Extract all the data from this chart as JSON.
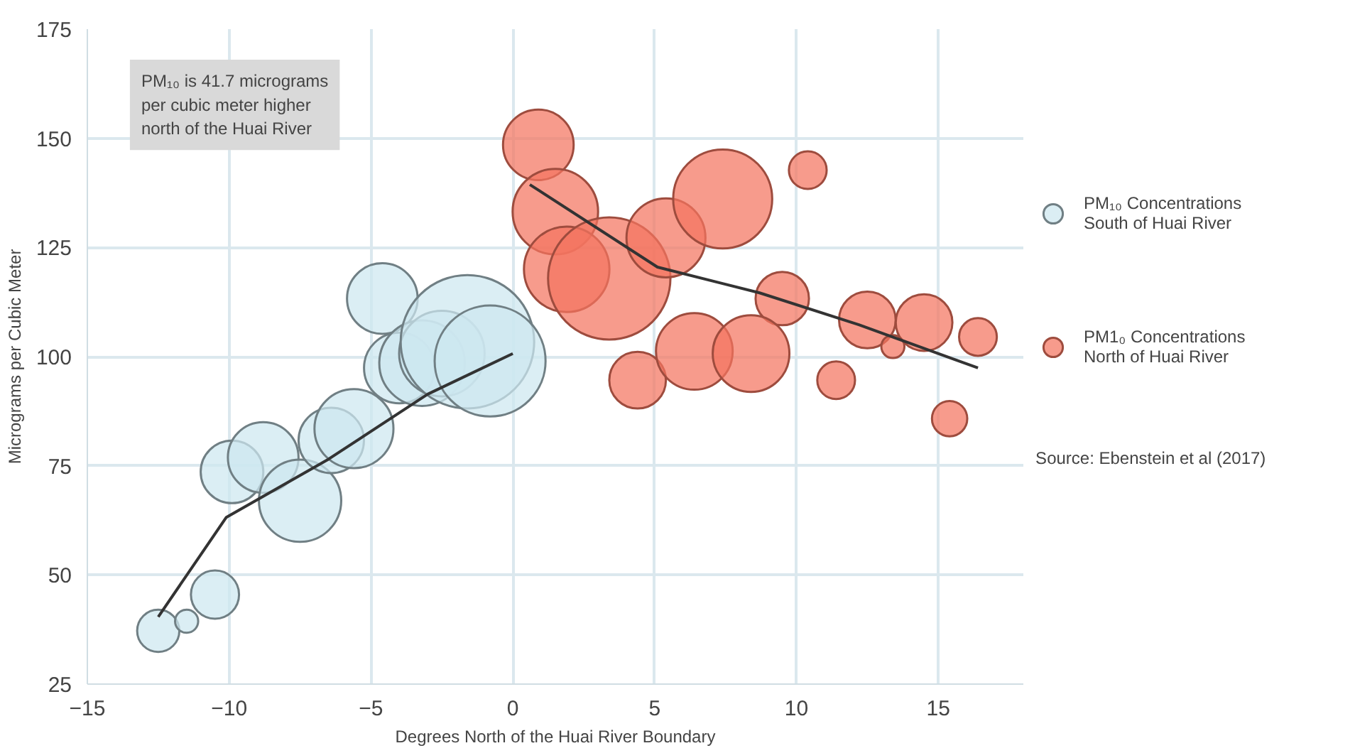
{
  "chart_data": {
    "type": "bubble",
    "xlabel": "Degrees North of the Huai River Boundary",
    "ylabel": "Micrograms per Cubic Meter",
    "xlim": [
      -15,
      18
    ],
    "xticks": [
      -15,
      -10,
      -5,
      0,
      5,
      10,
      15
    ],
    "ylim": [
      25,
      175
    ],
    "yticks": [
      25,
      50,
      75,
      100,
      125,
      150,
      175
    ],
    "grid": true,
    "legend": "right",
    "marker": "circle",
    "annotations": [
      "PM₁₀ is 41.7 micrograms per cubic meter higher north of the Huai River",
      "Source: Ebenstein et al (2017)"
    ],
    "series": [
      {
        "name": "PM₁₀ Concentrations South of Huai River",
        "color": "#cde8f0",
        "x": [
          -12.5,
          -11.5,
          -10.5,
          -9.9,
          -8.8,
          -7.5,
          -6.4,
          -5.6,
          -4.6,
          -4.0,
          -3.2,
          -2.5,
          -1.6,
          -0.8
        ],
        "values": [
          37.2,
          39.4,
          45.5,
          73.6,
          76.9,
          67,
          80.8,
          83.5,
          113.3,
          97.4,
          98.5,
          100.7,
          103.4,
          99
        ],
        "sizes": [
          0.1,
          0.03,
          0.13,
          0.22,
          0.28,
          0.38,
          0.24,
          0.35,
          0.28,
          0.28,
          0.41,
          0.41,
          1,
          0.69
        ]
      },
      {
        "name": "PM1₀ Concentrations North of Huai River",
        "color": "#f47560",
        "x": [
          0.9,
          1.5,
          1.9,
          3.4,
          5.4,
          7.4,
          10.4,
          9.5,
          4.4,
          6.4,
          8.4,
          11.4,
          12.5,
          13.4,
          14.5,
          16.4,
          15.4
        ],
        "values": [
          148.5,
          133.2,
          120,
          117.9,
          127.2,
          136.1,
          142.7,
          113.3,
          94.6,
          101.2,
          100.7,
          94.6,
          108.4,
          102.3,
          107.8,
          104.5,
          85.8
        ],
        "sizes": [
          0.28,
          0.41,
          0.41,
          0.84,
          0.35,
          0.55,
          0.08,
          0.16,
          0.18,
          0.33,
          0.33,
          0.08,
          0.18,
          0.03,
          0.18,
          0.08,
          0.07
        ]
      },
      {
        "type": "line",
        "marker": "none",
        "color": "#333333",
        "x": [
          -12.5,
          -10.1,
          -6.5,
          -3.0,
          0
        ],
        "values": [
          40.4,
          63.2,
          76.5,
          91.4,
          100.7
        ]
      },
      {
        "type": "line",
        "marker": "none",
        "color": "#333333",
        "x": [
          0.6,
          5.1,
          8.7,
          12.2,
          16.4
        ],
        "values": [
          139.4,
          120.5,
          114.6,
          107.3,
          97.4
        ]
      }
    ]
  }
}
